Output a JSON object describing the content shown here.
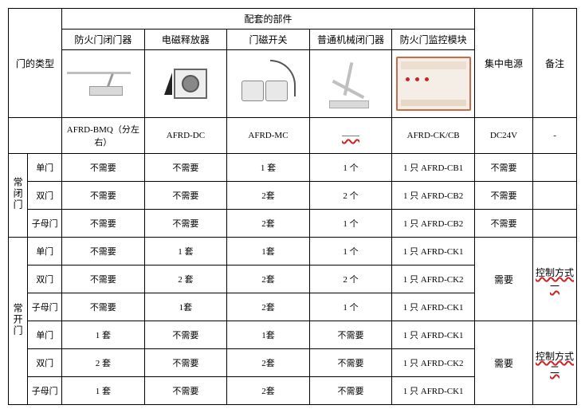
{
  "headers": {
    "door_type": "门的类型",
    "components": "配套的部件",
    "power": "集中电源",
    "remark": "备注",
    "cols": {
      "closer": "防火门闭门器",
      "em_release": "电磁释放器",
      "mag_switch": "门磁开关",
      "mech_closer": "普通机械闭门器",
      "monitor": "防火门监控模块"
    },
    "codes": {
      "closer": "AFRD-BMQ（分左右）",
      "em_release": "AFRD-DC",
      "mag_switch": "AFRD-MC",
      "mech_closer": "——",
      "monitor": "AFRD-CK/CB",
      "power": "DC24V",
      "remark": "-"
    }
  },
  "groups": [
    {
      "group_label": "常闭门",
      "rows": [
        {
          "door": "单门",
          "c1": "不需要",
          "c2": "不需要",
          "c3": "1 套",
          "c4": "1 个",
          "c5": "1 只 AFRD-CB1",
          "pw": "不需要",
          "rem": ""
        },
        {
          "door": "双门",
          "c1": "不需要",
          "c2": "不需要",
          "c3": "2套",
          "c4": "2 个",
          "c5": "1 只 AFRD-CB2",
          "pw": "不需要",
          "rem": ""
        },
        {
          "door": "子母门",
          "c1": "不需要",
          "c2": "不需要",
          "c3": "2套",
          "c4": "1 个",
          "c5": "1 只 AFRD-CB2",
          "pw": "不需要",
          "rem": ""
        }
      ]
    },
    {
      "group_label": "常开门",
      "sub1": {
        "remark": "控制方式一",
        "power": "需要",
        "rows": [
          {
            "door": "单门",
            "c1": "不需要",
            "c2": "1 套",
            "c3": "1套",
            "c4": "1 个",
            "c5": "1 只 AFRD-CK1"
          },
          {
            "door": "双门",
            "c1": "不需要",
            "c2": "2 套",
            "c3": "2套",
            "c4": "2 个",
            "c5": "1 只 AFRD-CK2"
          },
          {
            "door": "子母门",
            "c1": "不需要",
            "c2": "1套",
            "c3": "2套",
            "c4": "1 个",
            "c5": "1 只 AFRD-CK1"
          }
        ]
      },
      "sub2": {
        "remark": "控制方式二",
        "power": "需要",
        "rows": [
          {
            "door": "单门",
            "c1": "1 套",
            "c2": "不需要",
            "c3": "1套",
            "c4": "不需要",
            "c5": "1 只 AFRD-CK1"
          },
          {
            "door": "双门",
            "c1": "2 套",
            "c2": "不需要",
            "c3": "2套",
            "c4": "不需要",
            "c5": "1 只 AFRD-CK2"
          },
          {
            "door": "子母门",
            "c1": "1 套",
            "c2": "不需要",
            "c3": "2套",
            "c4": "不需要",
            "c5": "1 只 AFRD-CK1"
          }
        ]
      }
    }
  ]
}
